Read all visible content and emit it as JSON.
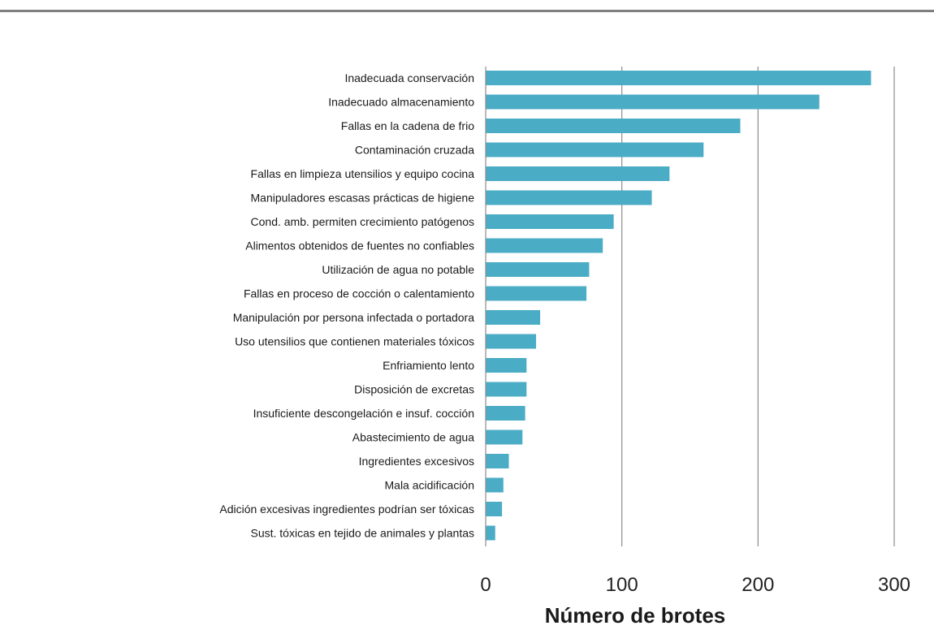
{
  "chart_data": {
    "type": "bar",
    "orientation": "horizontal",
    "title": "",
    "xlabel": "Número de brotes",
    "ylabel": "",
    "xlim": [
      0,
      300
    ],
    "xticks": [
      "0",
      "100",
      "200",
      "300"
    ],
    "grid": "vertical",
    "bar_color": "#4bacc6",
    "categories": [
      "Inadecuada conservación",
      "Inadecuado almacenamiento",
      "Fallas en la cadena de frio",
      "Contaminación cruzada",
      "Fallas en limpieza utensilios y equipo cocina",
      "Manipuladores escasas prácticas de higiene",
      "Cond. amb. permiten crecimiento patógenos",
      "Alimentos obtenidos de fuentes no confiables",
      "Utilización de agua no potable",
      "Fallas en proceso de cocción o calentamiento",
      "Manipulación por persona infectada o portadora",
      "Uso utensilios que contienen materiales tóxicos",
      "Enfriamiento lento",
      "Disposición de excretas",
      "Insuficiente descongelación e insuf. cocción",
      "Abastecimiento de agua",
      "Ingredientes excesivos",
      "Mala acidificación",
      "Adición excesivas ingredientes podrían ser tóxicas",
      "Sust. tóxicas en tejido de animales y plantas"
    ],
    "values": [
      283,
      245,
      187,
      160,
      135,
      122,
      94,
      86,
      76,
      74,
      40,
      37,
      30,
      30,
      29,
      27,
      17,
      13,
      12,
      7
    ]
  }
}
